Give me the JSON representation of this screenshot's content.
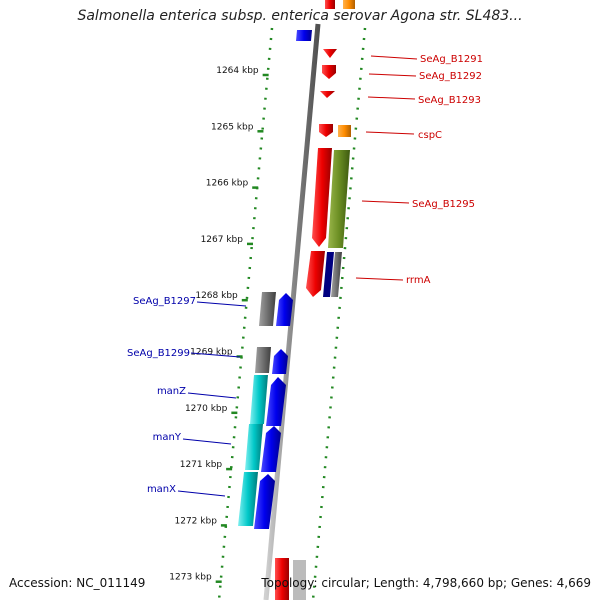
{
  "title": "Salmonella enterica subsp. enterica serovar Agona str. SL483...",
  "footer": {
    "accession": "Accession: NC_011149",
    "topology": "Topology: circular; Length: 4,798,660 bp; Genes: 4,669"
  },
  "ticks": [
    {
      "label": "1264 kbp",
      "kbp": 1264
    },
    {
      "label": "1265 kbp",
      "kbp": 1265
    },
    {
      "label": "1266 kbp",
      "kbp": 1266
    },
    {
      "label": "1267 kbp",
      "kbp": 1267
    },
    {
      "label": "1268 kbp",
      "kbp": 1268
    },
    {
      "label": "1269 kbp",
      "kbp": 1269
    },
    {
      "label": "1270 kbp",
      "kbp": 1270
    },
    {
      "label": "1271 kbp",
      "kbp": 1271
    },
    {
      "label": "1272 kbp",
      "kbp": 1272
    },
    {
      "label": "1273 kbp",
      "kbp": 1273
    }
  ],
  "colors": {
    "cds": "#ee0000",
    "olive": "#6b8e23",
    "orange": "#ff8c00",
    "blue": "#0000ee",
    "cyan": "#00c8c8",
    "gray": "#707070",
    "navy": "#000080",
    "backbone": "#909090",
    "dots": "#228822",
    "label_red": "#cc0000",
    "label_blue": "#0000aa"
  },
  "genes_right": [
    {
      "label": "SeAg_B1291"
    },
    {
      "label": "SeAg_B1292"
    },
    {
      "label": "SeAg_B1293"
    },
    {
      "label": "cspC"
    },
    {
      "label": "SeAg_B1295"
    },
    {
      "label": "rrmA"
    }
  ],
  "genes_left": [
    {
      "label": "SeAg_B1297"
    },
    {
      "label": "SeAg_B1299"
    },
    {
      "label": "manZ"
    },
    {
      "label": "manY"
    },
    {
      "label": "manX"
    }
  ]
}
